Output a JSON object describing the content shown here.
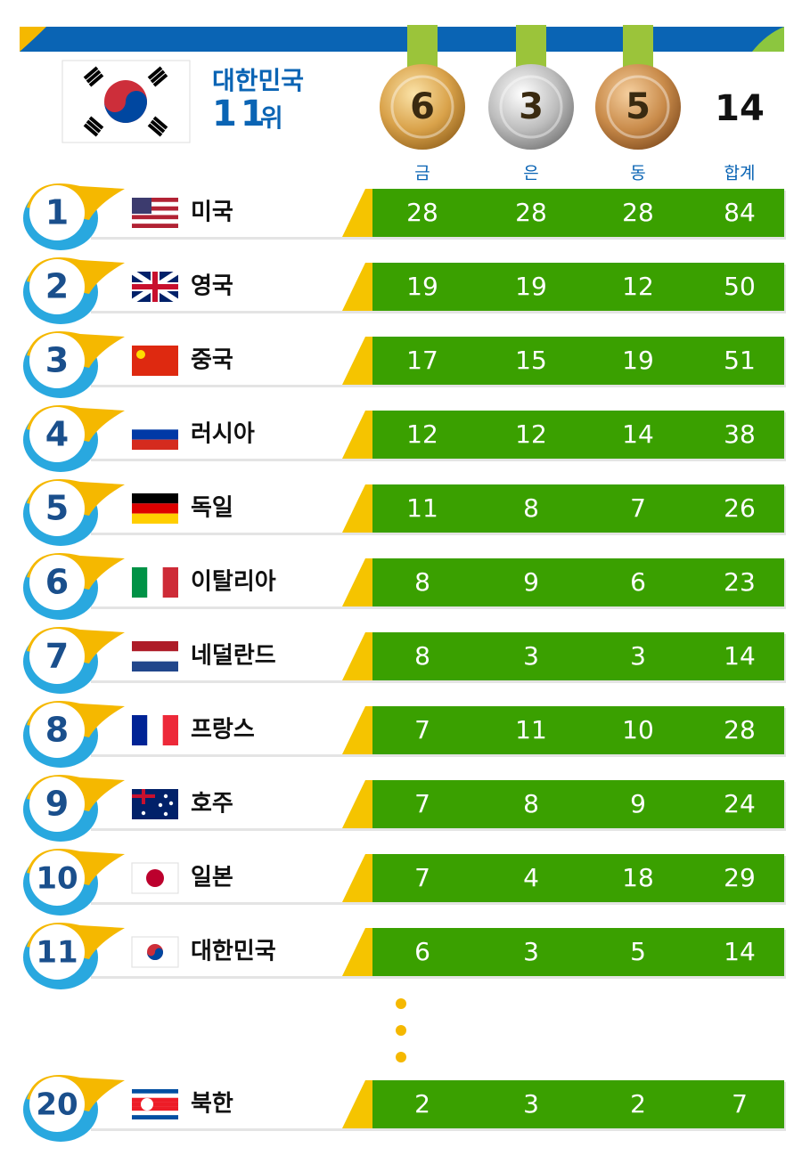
{
  "header": {
    "country": "대한민국",
    "rank": "11",
    "rank_unit": "위",
    "gold": 6,
    "silver": 3,
    "bronze": 5,
    "total": 14
  },
  "columns": [
    "금",
    "은",
    "동",
    "합계"
  ],
  "rows": [
    {
      "rank": 1,
      "country": "미국",
      "gold": 28,
      "silver": 28,
      "bronze": 28,
      "total": 84
    },
    {
      "rank": 2,
      "country": "영국",
      "gold": 19,
      "silver": 19,
      "bronze": 12,
      "total": 50
    },
    {
      "rank": 3,
      "country": "중국",
      "gold": 17,
      "silver": 15,
      "bronze": 19,
      "total": 51
    },
    {
      "rank": 4,
      "country": "러시아",
      "gold": 12,
      "silver": 12,
      "bronze": 14,
      "total": 38
    },
    {
      "rank": 5,
      "country": "독일",
      "gold": 11,
      "silver": 8,
      "bronze": 7,
      "total": 26
    },
    {
      "rank": 6,
      "country": "이탈리아",
      "gold": 8,
      "silver": 9,
      "bronze": 6,
      "total": 23
    },
    {
      "rank": 7,
      "country": "네덜란드",
      "gold": 8,
      "silver": 3,
      "bronze": 3,
      "total": 14
    },
    {
      "rank": 8,
      "country": "프랑스",
      "gold": 7,
      "silver": 11,
      "bronze": 10,
      "total": 28
    },
    {
      "rank": 9,
      "country": "호주",
      "gold": 7,
      "silver": 8,
      "bronze": 9,
      "total": 24
    },
    {
      "rank": 10,
      "country": "일본",
      "gold": 7,
      "silver": 4,
      "bronze": 18,
      "total": 29
    },
    {
      "rank": 11,
      "country": "대한민국",
      "gold": 6,
      "silver": 3,
      "bronze": 5,
      "total": 14
    },
    {
      "rank": 20,
      "country": "북한",
      "gold": 2,
      "silver": 3,
      "bronze": 2,
      "total": 7
    }
  ]
}
